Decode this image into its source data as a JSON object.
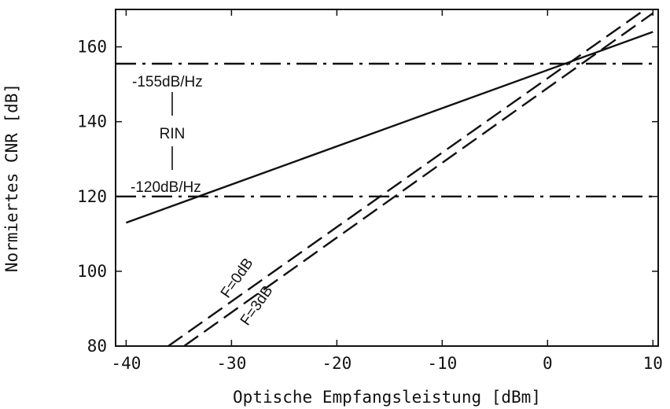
{
  "chart_data": {
    "type": "line",
    "title": "",
    "xlabel": "Optische Empfangsleistung [dBm]",
    "ylabel": "Normiertes CNR [dB]",
    "xlim": [
      -41,
      10.5
    ],
    "ylim": [
      80,
      170
    ],
    "xticks": [
      -40,
      -30,
      -20,
      -10,
      0,
      10
    ],
    "yticks": [
      80,
      100,
      120,
      140,
      160
    ],
    "grid": false,
    "series": [
      {
        "name": "",
        "style": "solid",
        "x": [
          -40,
          10
        ],
        "y": [
          113,
          164
        ]
      },
      {
        "name": "F=0dB",
        "style": "dashed",
        "x": [
          -36,
          10
        ],
        "y": [
          80,
          171.5
        ]
      },
      {
        "name": "F=3dB",
        "style": "dashed",
        "x": [
          -34.5,
          10
        ],
        "y": [
          80,
          169
        ]
      },
      {
        "name": "-155dB/Hz",
        "style": "dashdot",
        "x": [
          -41,
          10.5
        ],
        "y": [
          155.5,
          155.5
        ]
      },
      {
        "name": "-120dB/Hz",
        "style": "dashdot",
        "x": [
          -41,
          10.5
        ],
        "y": [
          120,
          120
        ]
      }
    ],
    "annotations": {
      "rin_high": "-155dB/Hz",
      "rin": "RIN",
      "rin_low": "-120dB/Hz",
      "f0": "F=0dB",
      "f3": "F=3dB"
    }
  }
}
